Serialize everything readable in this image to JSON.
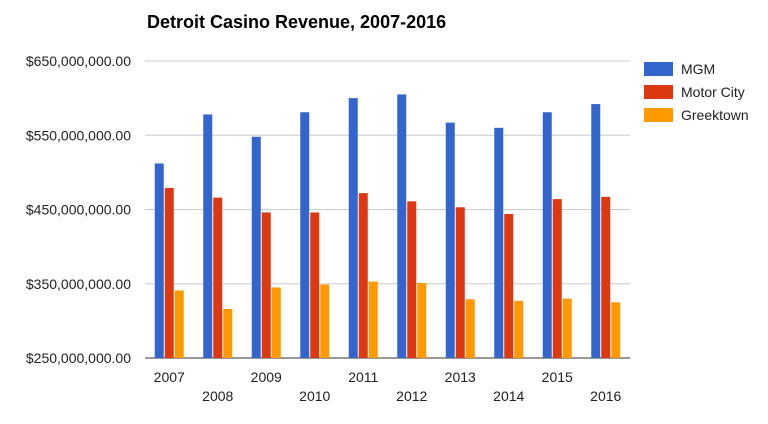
{
  "chart_data": {
    "type": "bar",
    "title": "Detroit Casino Revenue, 2007-2016",
    "xlabel": "",
    "ylabel": "",
    "categories": [
      "2007",
      "2008",
      "2009",
      "2010",
      "2011",
      "2012",
      "2013",
      "2014",
      "2015",
      "2016"
    ],
    "series": [
      {
        "name": "MGM",
        "color": "#3366cc",
        "values": [
          512000000,
          578000000,
          548000000,
          581000000,
          600000000,
          605000000,
          567000000,
          560000000,
          581000000,
          592000000
        ]
      },
      {
        "name": "Motor City",
        "color": "#dc3912",
        "values": [
          479000000,
          466000000,
          446000000,
          446000000,
          472000000,
          461000000,
          453000000,
          444000000,
          464000000,
          467000000
        ]
      },
      {
        "name": "Greektown",
        "color": "#ff9900",
        "values": [
          341000000,
          316000000,
          345000000,
          349000000,
          353000000,
          351000000,
          329000000,
          327000000,
          330000000,
          325000000
        ]
      }
    ],
    "ylim": [
      250000000,
      650000000
    ],
    "y_ticks": [
      250000000,
      350000000,
      450000000,
      550000000,
      650000000
    ],
    "y_tick_labels": [
      "$250,000,000.00",
      "$350,000,000.00",
      "$450,000,000.00",
      "$550,000,000.00",
      "$650,000,000.00"
    ],
    "grid": true,
    "legend_position": "right"
  }
}
